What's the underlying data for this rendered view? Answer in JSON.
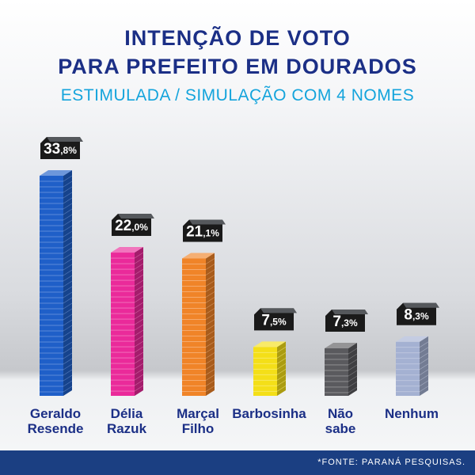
{
  "header": {
    "title_line1": "INTENÇÃO DE VOTO",
    "title_line2": "PARA PREFEITO EM DOURADOS",
    "subtitle": "ESTIMULADA / SIMULAÇÃO COM 4 NOMES"
  },
  "chart_data": {
    "type": "bar",
    "title": "INTENÇÃO DE VOTO PARA PREFEITO EM DOURADOS",
    "subtitle": "ESTIMULADA / SIMULAÇÃO COM 4 NOMES",
    "categories": [
      [
        "Geraldo",
        "Resende"
      ],
      [
        "Délia",
        "Razuk"
      ],
      [
        "Marçal",
        "Filho"
      ],
      [
        "Barbosinha"
      ],
      [
        "Não",
        "sabe"
      ],
      [
        "Nenhum"
      ]
    ],
    "values": [
      33.8,
      22.0,
      21.1,
      7.5,
      7.3,
      8.3
    ],
    "value_labels": [
      {
        "int": "33",
        "dec": ",8%"
      },
      {
        "int": "22",
        "dec": ",0%"
      },
      {
        "int": "21",
        "dec": ",1%"
      },
      {
        "int": "7",
        "dec": ",5%"
      },
      {
        "int": "7",
        "dec": ",3%"
      },
      {
        "int": "8",
        "dec": ",3%"
      }
    ],
    "colors": [
      "#1f5fc8",
      "#ea2a9a",
      "#f08428",
      "#f4df18",
      "#5a5a5e",
      "#a4b1d2"
    ],
    "ylim": [
      0,
      33.8
    ],
    "grid": false,
    "legend": "none"
  },
  "footer": {
    "source": "*FONTE: PARANÁ PESQUISAS."
  }
}
